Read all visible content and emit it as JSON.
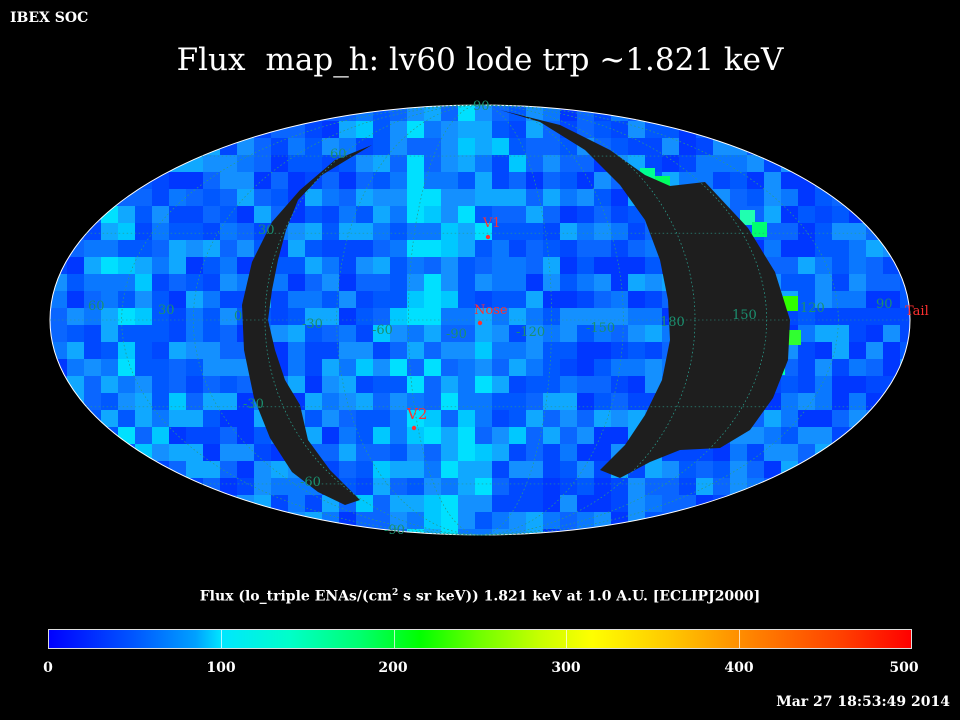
{
  "header": {
    "org": "IBEX SOC",
    "title_part1": "Flux",
    "title_part2": "map_h: lv60 lode trp ~1.821 keV"
  },
  "map": {
    "projection": "Mollweide (Aitoff-like), ecliptic J2000",
    "markers": [
      {
        "label": "V1",
        "color": "#ff3030"
      },
      {
        "label": "Nose",
        "color": "#ff3030"
      },
      {
        "label": "V2",
        "color": "#ff3030"
      },
      {
        "label": "Tail",
        "color": "#ff3030"
      }
    ],
    "lon_labels": [
      "60",
      "30",
      "0",
      "-30",
      "-60",
      "-90",
      "-120",
      "-150",
      "180",
      "150",
      "120",
      "90"
    ],
    "lat_labels": [
      "90",
      "60",
      "30",
      "-30",
      "-60",
      "-90"
    ],
    "no_data_color": "#1e1e1e"
  },
  "colorbar": {
    "title_prefix": "Flux (lo_triple ENAs/(cm",
    "title_sup": "2",
    "title_suffix": " s sr keV))  1.821 keV at 1.0 A.U. [ECLIPJ2000]",
    "ticks": [
      "0",
      "100",
      "200",
      "300",
      "400",
      "500"
    ],
    "range": [
      0,
      500
    ]
  },
  "footer": {
    "timestamp": "Mar 27 18:53:49 2014"
  }
}
